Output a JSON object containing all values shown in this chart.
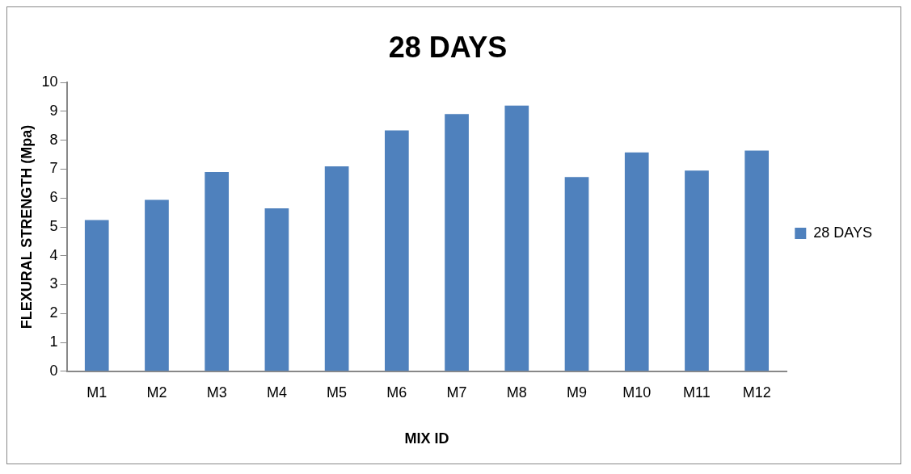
{
  "chart_data": {
    "type": "bar",
    "title": "28 DAYS",
    "xlabel": "MIX ID",
    "ylabel": "FLEXURAL STRENGTH (Mpa)",
    "categories": [
      "M1",
      "M2",
      "M3",
      "M4",
      "M5",
      "M6",
      "M7",
      "M8",
      "M9",
      "M10",
      "M11",
      "M12"
    ],
    "series": [
      {
        "name": "28 DAYS",
        "color": "#4f81bd",
        "values": [
          5.24,
          5.94,
          6.9,
          5.64,
          7.1,
          8.34,
          8.91,
          9.2,
          6.73,
          7.58,
          6.95,
          7.64
        ]
      }
    ],
    "ylim": [
      0,
      10
    ],
    "yticks": [
      0,
      1,
      2,
      3,
      4,
      5,
      6,
      7,
      8,
      9,
      10
    ],
    "grid": false,
    "legend": "right"
  }
}
